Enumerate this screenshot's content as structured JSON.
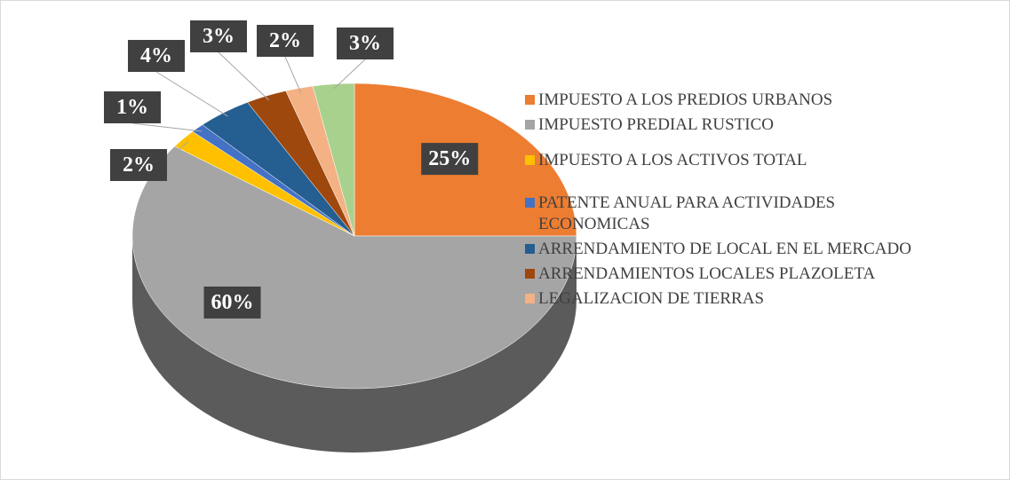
{
  "chart_data": {
    "type": "pie",
    "categories": [
      "IMPUESTO A LOS PREDIOS URBANOS",
      "IMPUESTO PREDIAL RUSTICO",
      "IMPUESTO A LOS ACTIVOS TOTAL",
      "PATENTE ANUAL PARA ACTIVIDADES ECONOMICAS",
      "ARRENDAMIENTO DE LOCAL EN EL MERCADO",
      "ARRENDAMIENTOS LOCALES PLAZOLETA",
      "LEGALIZACION DE TIERRAS",
      null
    ],
    "values": [
      25,
      60,
      2,
      1,
      4,
      3,
      2,
      3
    ],
    "value_labels": [
      "25%",
      "60%",
      "2%",
      "1%",
      "4%",
      "3%",
      "2%",
      "3%"
    ],
    "colors": [
      "#ed7d31",
      "#a5a5a5",
      "#ffc000",
      "#4472c4",
      "#255e91",
      "#9e480e",
      "#f4b183",
      "#a9d18e"
    ],
    "legend": "right"
  }
}
